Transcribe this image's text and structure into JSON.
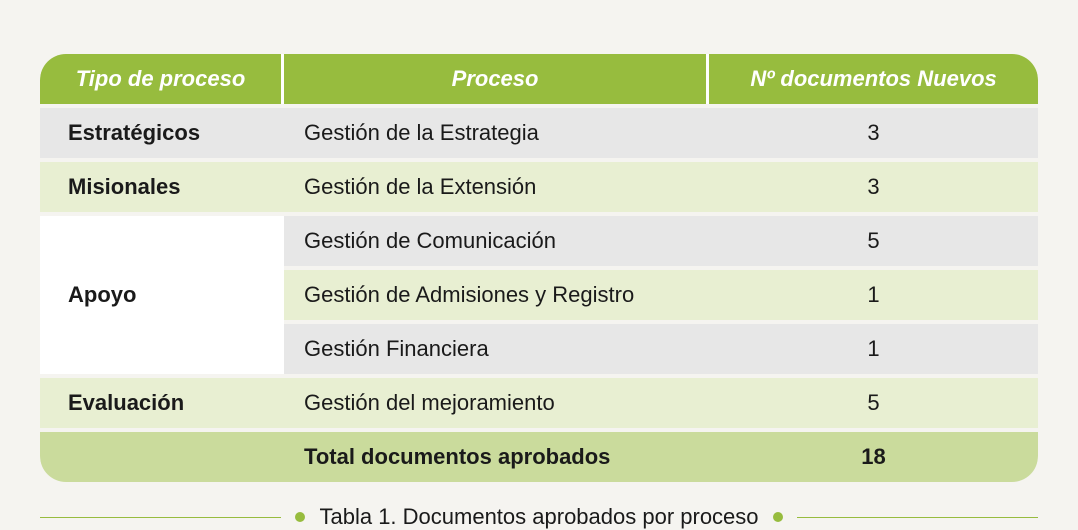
{
  "table": {
    "columns": [
      "Tipo de proceso",
      "Proceso",
      "Nº documentos Nuevos"
    ],
    "rows": [
      {
        "type": "Estratégicos",
        "process": "Gestión de la Estrategia",
        "count": "3",
        "variant": "gray",
        "showType": true,
        "rowspan": 1
      },
      {
        "type": "Misionales",
        "process": "Gestión de la Extensión",
        "count": "3",
        "variant": "green",
        "showType": true,
        "rowspan": 1
      },
      {
        "type": "Apoyo",
        "process": "Gestión de Comunicación",
        "count": "5",
        "variant": "gray",
        "showType": true,
        "rowspan": 3
      },
      {
        "type": "",
        "process": "Gestión de Admisiones y Registro",
        "count": "1",
        "variant": "green",
        "showType": false
      },
      {
        "type": "",
        "process": "Gestión Financiera",
        "count": "1",
        "variant": "gray",
        "showType": false
      },
      {
        "type": "Evaluación",
        "process": "Gestión del mejoramiento",
        "count": "5",
        "variant": "green",
        "showType": true,
        "rowspan": 1
      }
    ],
    "total": {
      "label": "Total documentos aprobados",
      "value": "18"
    },
    "header_bg": "#97bc3e",
    "header_fg": "#ffffff",
    "row_gray_bg": "#e7e7e7",
    "row_green_bg": "#e8efd2",
    "total_bg": "#cadb9c",
    "font_size": 22,
    "border_radius": 26
  },
  "caption": "Tabla 1. Documentos aprobados por proceso",
  "accent_color": "#97bc3e",
  "background_color": "#f5f4f0"
}
